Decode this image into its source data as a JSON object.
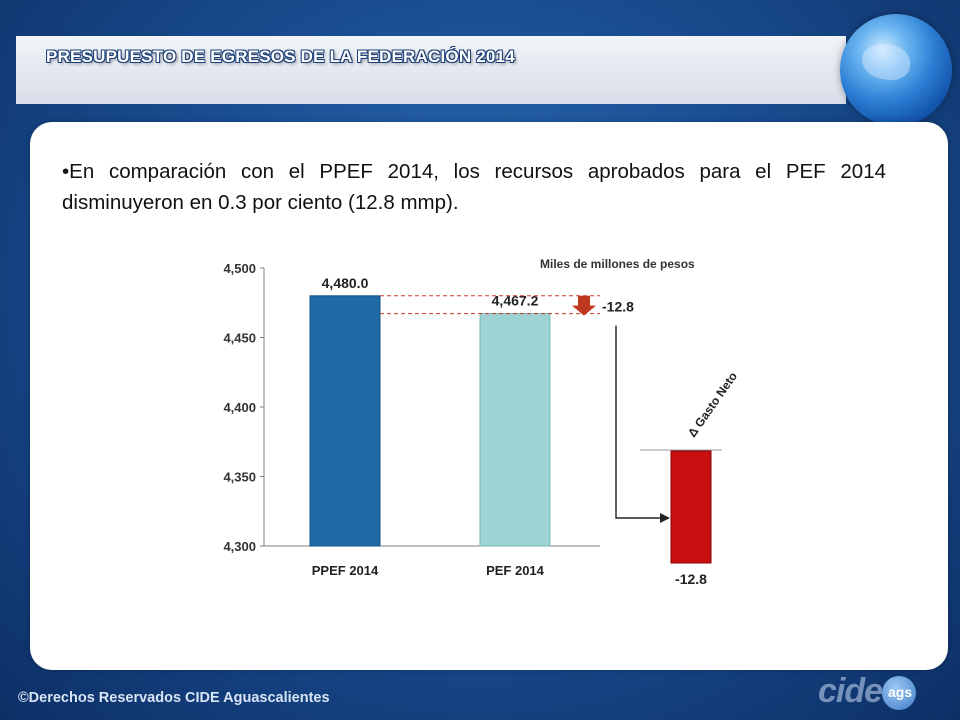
{
  "slide": {
    "title": "PRESUPUESTO DE EGRESOS DE LA FEDERACIÓN 2014",
    "bullet": "•En comparación con el PPEF 2014, los recursos aprobados para el PEF 2014 disminuyeron en 0.3 por ciento (12.8 mmp).",
    "footer": "©Derechos Reservados CIDE Aguascalientes",
    "logo_text": "cide",
    "logo_sub": "ags"
  },
  "chart_data": {
    "type": "bar",
    "categories": [
      "PPEF 2014",
      "PEF 2014"
    ],
    "values": [
      4480.0,
      4467.2
    ],
    "value_labels": [
      "4,480.0",
      "4,467.2"
    ],
    "ylim": [
      4300,
      4500
    ],
    "yticks": [
      4300,
      4350,
      4400,
      4450,
      4500
    ],
    "ytick_labels": [
      "4,300",
      "4,350",
      "4,400",
      "4,450",
      "4,500"
    ],
    "unit_note": "Miles de millones de pesos",
    "difference_label": "-12.8",
    "delta_bar_value": -12.8,
    "delta_bar_label": "-12.8",
    "delta_title": "Δ Gasto Neto",
    "colors": {
      "ppef": "#1f6aa6",
      "pef": "#9ed3d3",
      "delta": "#c81010",
      "arrow": "#c0391f"
    }
  }
}
